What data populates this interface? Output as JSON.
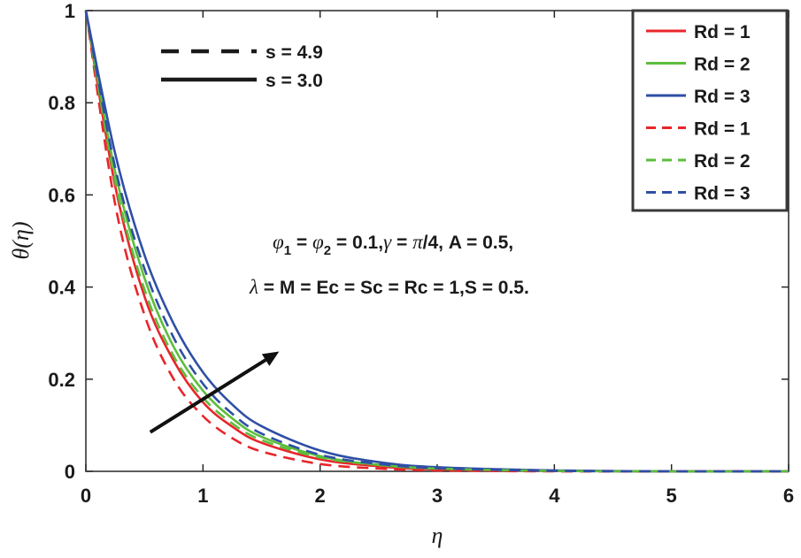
{
  "chart_data": {
    "type": "line",
    "xlabel": "η",
    "ylabel": "θ(η)",
    "xlim": [
      0,
      6
    ],
    "ylim": [
      0,
      1
    ],
    "xticks": [
      "0",
      "1",
      "2",
      "3",
      "4",
      "5",
      "6"
    ],
    "yticks": [
      "0",
      "0.2",
      "0.4",
      "0.6",
      "0.8",
      "1"
    ],
    "grid": false,
    "x": [
      0,
      0.25,
      0.5,
      0.75,
      1,
      1.25,
      1.5,
      2,
      2.5,
      3,
      4,
      5,
      6
    ],
    "series": [
      {
        "name": "Rd = 1",
        "color": "#e8252a",
        "style": "solid",
        "values": [
          1,
          0.62,
          0.38,
          0.24,
          0.15,
          0.097,
          0.062,
          0.026,
          0.011,
          0.004,
          0.001,
          0,
          0
        ]
      },
      {
        "name": "Rd = 2",
        "color": "#5cbd3c",
        "style": "solid",
        "values": [
          1,
          0.65,
          0.42,
          0.27,
          0.175,
          0.115,
          0.075,
          0.033,
          0.014,
          0.006,
          0.001,
          0,
          0
        ]
      },
      {
        "name": "Rd = 3",
        "color": "#2f4fa5",
        "style": "solid",
        "values": [
          1,
          0.69,
          0.47,
          0.32,
          0.215,
          0.145,
          0.098,
          0.045,
          0.02,
          0.009,
          0.002,
          0,
          0
        ]
      },
      {
        "name": "Rd = 1",
        "color": "#e8252a",
        "style": "dashed",
        "values": [
          1,
          0.58,
          0.34,
          0.2,
          0.12,
          0.072,
          0.043,
          0.016,
          0.006,
          0.002,
          0,
          0,
          0
        ]
      },
      {
        "name": "Rd = 2",
        "color": "#5cbd3c",
        "style": "dashed",
        "values": [
          1,
          0.63,
          0.395,
          0.25,
          0.16,
          0.104,
          0.068,
          0.03,
          0.014,
          0.006,
          0.001,
          0,
          0
        ]
      },
      {
        "name": "Rd = 3",
        "color": "#2f4fa5",
        "style": "dashed",
        "values": [
          1,
          0.66,
          0.44,
          0.29,
          0.19,
          0.125,
          0.082,
          0.036,
          0.016,
          0.007,
          0.001,
          0,
          0
        ]
      }
    ],
    "style_legend": [
      {
        "label": "s = 4.9",
        "style": "dashed",
        "color": "#1a1a1a"
      },
      {
        "label": "s = 3.0",
        "style": "solid",
        "color": "#1a1a1a"
      }
    ],
    "legend_position": "top-right",
    "annotation": {
      "line1": {
        "phi": "φ",
        "sub1": "1",
        "mid": " = ",
        "sub2": "2",
        "after_phi2": " = 0.1,",
        "gamma": "γ",
        "gamma_eq": " = ",
        "pi": "π",
        "rest": "/4, A = 0.5,"
      },
      "line2": {
        "lambda": "λ",
        "rest": " = M = Ec = Sc = Rc = 1,S = 0.5."
      }
    },
    "arrow": {
      "from": [
        0.55,
        0.085
      ],
      "to": [
        1.65,
        0.26
      ],
      "color": "#111111"
    }
  }
}
